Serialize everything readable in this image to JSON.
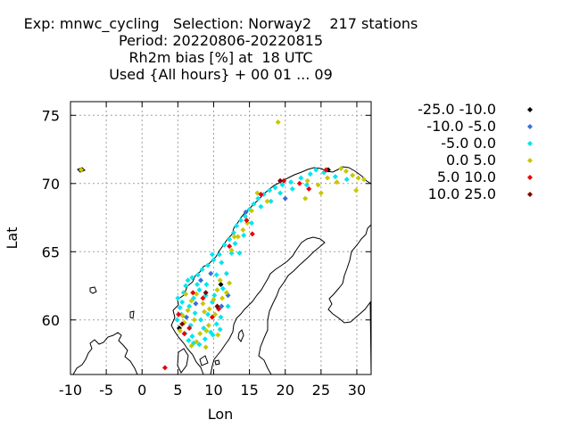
{
  "header": {
    "line1": "Exp: mnwc_cycling   Selection: Norway2    217 stations",
    "line2": "Period: 20220806-20220815",
    "line3": "Rh2m bias [%] at  18 UTC",
    "line4": "Used {All hours} + 00 01 ... 09"
  },
  "chart_data": {
    "type": "scatter",
    "title": "Rh2m bias [%] at  18 UTC",
    "xlabel": "Lon",
    "ylabel": "Lat",
    "xlim": [
      -10,
      32
    ],
    "ylim": [
      56,
      76
    ],
    "xticks": [
      "-10",
      "-5",
      "0",
      "5",
      "10",
      "15",
      "20",
      "25",
      "30"
    ],
    "yticks": [
      "60",
      "65",
      "70",
      "75"
    ],
    "grid": true,
    "legend_position": "right",
    "series": [
      {
        "name": "-25.0 -10.0",
        "color": "#000000",
        "points": [
          [
            26.0,
            71.0
          ],
          [
            5.2,
            59.4
          ],
          [
            11.0,
            62.6
          ]
        ]
      },
      {
        "name": "-10.0 -5.0",
        "color": "#3a6fd8",
        "points": [
          [
            12.0,
            61.8
          ],
          [
            20.0,
            68.9
          ],
          [
            8.2,
            62.9
          ],
          [
            7.5,
            61.2
          ],
          [
            9.6,
            63.4
          ],
          [
            11.1,
            61.0
          ],
          [
            6.2,
            60.2
          ],
          [
            14.5,
            67.9
          ]
        ]
      },
      {
        "name": "-5.0 0.0",
        "color": "#00e5ee",
        "points": [
          [
            5.5,
            60.4
          ],
          [
            5.3,
            60.9
          ],
          [
            5.0,
            61.6
          ],
          [
            5.8,
            62.0
          ],
          [
            6.1,
            62.5
          ],
          [
            6.4,
            62.9
          ],
          [
            7.0,
            63.1
          ],
          [
            7.8,
            63.3
          ],
          [
            8.4,
            63.7
          ],
          [
            9.2,
            64.0
          ],
          [
            10.0,
            64.4
          ],
          [
            10.8,
            64.8
          ],
          [
            11.5,
            65.5
          ],
          [
            12.2,
            65.9
          ],
          [
            12.8,
            66.4
          ],
          [
            13.2,
            66.9
          ],
          [
            13.8,
            67.3
          ],
          [
            14.4,
            67.6
          ],
          [
            15.0,
            68.1
          ],
          [
            15.6,
            68.5
          ],
          [
            16.2,
            68.9
          ],
          [
            17.0,
            69.2
          ],
          [
            17.8,
            69.5
          ],
          [
            18.6,
            69.7
          ],
          [
            19.6,
            69.9
          ],
          [
            20.8,
            70.1
          ],
          [
            22.2,
            70.4
          ],
          [
            23.5,
            70.7
          ],
          [
            24.3,
            71.0
          ],
          [
            25.4,
            70.8
          ],
          [
            27.0,
            70.5
          ],
          [
            28.6,
            70.3
          ],
          [
            6.0,
            59.0
          ],
          [
            6.5,
            58.5
          ],
          [
            7.2,
            58.3
          ],
          [
            8.0,
            58.2
          ],
          [
            8.8,
            58.6
          ],
          [
            9.6,
            59.1
          ],
          [
            10.4,
            59.7
          ],
          [
            11.0,
            60.2
          ],
          [
            10.6,
            60.9
          ],
          [
            9.8,
            61.3
          ],
          [
            8.9,
            61.8
          ],
          [
            8.0,
            62.2
          ],
          [
            7.2,
            61.6
          ],
          [
            6.6,
            61.0
          ],
          [
            7.4,
            60.5
          ],
          [
            8.2,
            60.0
          ],
          [
            9.2,
            60.4
          ],
          [
            10.1,
            61.8
          ],
          [
            11.3,
            62.3
          ],
          [
            10.4,
            63.3
          ],
          [
            9.8,
            64.8
          ],
          [
            11.1,
            64.2
          ],
          [
            12.5,
            64.9
          ],
          [
            13.0,
            65.6
          ],
          [
            14.2,
            66.2
          ],
          [
            15.3,
            67.1
          ],
          [
            16.6,
            68.3
          ],
          [
            18.0,
            68.7
          ],
          [
            19.3,
            69.3
          ],
          [
            21.0,
            69.6
          ],
          [
            23.0,
            69.9
          ],
          [
            6.8,
            59.6
          ],
          [
            8.6,
            59.4
          ],
          [
            9.9,
            58.9
          ],
          [
            10.9,
            59.3
          ],
          [
            5.6,
            61.3
          ],
          [
            7.7,
            62.6
          ],
          [
            12.0,
            61.0
          ],
          [
            4.9,
            60.0
          ],
          [
            7.0,
            58.8
          ],
          [
            9.0,
            62.6
          ],
          [
            11.8,
            63.4
          ],
          [
            13.6,
            64.9
          ]
        ]
      },
      {
        "name": "0.0 5.0",
        "color": "#c8c800",
        "points": [
          [
            -8.5,
            71.0
          ],
          [
            19.0,
            74.5
          ],
          [
            5.3,
            59.2
          ],
          [
            5.9,
            59.8
          ],
          [
            6.4,
            60.7
          ],
          [
            6.9,
            61.4
          ],
          [
            7.6,
            61.9
          ],
          [
            8.5,
            61.2
          ],
          [
            9.4,
            60.8
          ],
          [
            10.2,
            60.4
          ],
          [
            11.2,
            61.6
          ],
          [
            10.9,
            62.9
          ],
          [
            11.8,
            62.0
          ],
          [
            12.2,
            62.7
          ],
          [
            9.3,
            59.6
          ],
          [
            8.1,
            59.0
          ],
          [
            7.6,
            58.4
          ],
          [
            6.9,
            58.1
          ],
          [
            10.6,
            58.9
          ],
          [
            8.9,
            58.0
          ],
          [
            12.5,
            65.1
          ],
          [
            13.4,
            66.1
          ],
          [
            14.1,
            66.6
          ],
          [
            15.3,
            68.0
          ],
          [
            17.5,
            68.7
          ],
          [
            16.1,
            69.3
          ],
          [
            23.1,
            70.2
          ],
          [
            24.6,
            69.9
          ],
          [
            25.9,
            70.4
          ],
          [
            27.2,
            70.1
          ],
          [
            27.8,
            71.1
          ],
          [
            28.5,
            70.9
          ],
          [
            29.4,
            70.6
          ],
          [
            30.2,
            70.4
          ],
          [
            31.0,
            70.3
          ],
          [
            29.9,
            69.5
          ],
          [
            22.8,
            68.9
          ],
          [
            25.0,
            69.3
          ],
          [
            14.7,
            67.1
          ],
          [
            12.9,
            66.1
          ],
          [
            7.3,
            60.0
          ],
          [
            8.7,
            60.6
          ],
          [
            10.0,
            61.5
          ],
          [
            10.5,
            62.2
          ],
          [
            6.1,
            61.9
          ],
          [
            5.7,
            60.3
          ],
          [
            9.0,
            59.2
          ]
        ]
      },
      {
        "name": "5.0 10.0",
        "color": "#e8000b",
        "points": [
          [
            3.2,
            56.5
          ],
          [
            25.7,
            71.0
          ],
          [
            19.8,
            70.2
          ],
          [
            23.3,
            69.6
          ],
          [
            15.4,
            66.3
          ],
          [
            5.1,
            60.4
          ],
          [
            5.9,
            59.0
          ],
          [
            6.6,
            59.4
          ],
          [
            7.1,
            62.0
          ],
          [
            8.5,
            61.6
          ],
          [
            9.8,
            60.2
          ],
          [
            10.7,
            60.8
          ],
          [
            12.2,
            65.4
          ],
          [
            14.6,
            67.3
          ],
          [
            16.6,
            69.2
          ],
          [
            22.0,
            70.0
          ]
        ]
      },
      {
        "name": "10.0 25.0",
        "color": "#800000",
        "points": [
          [
            5.6,
            59.7
          ],
          [
            8.9,
            62.0
          ],
          [
            10.5,
            61.0
          ],
          [
            19.3,
            70.2
          ]
        ]
      }
    ]
  },
  "map": {
    "note": ""
  }
}
